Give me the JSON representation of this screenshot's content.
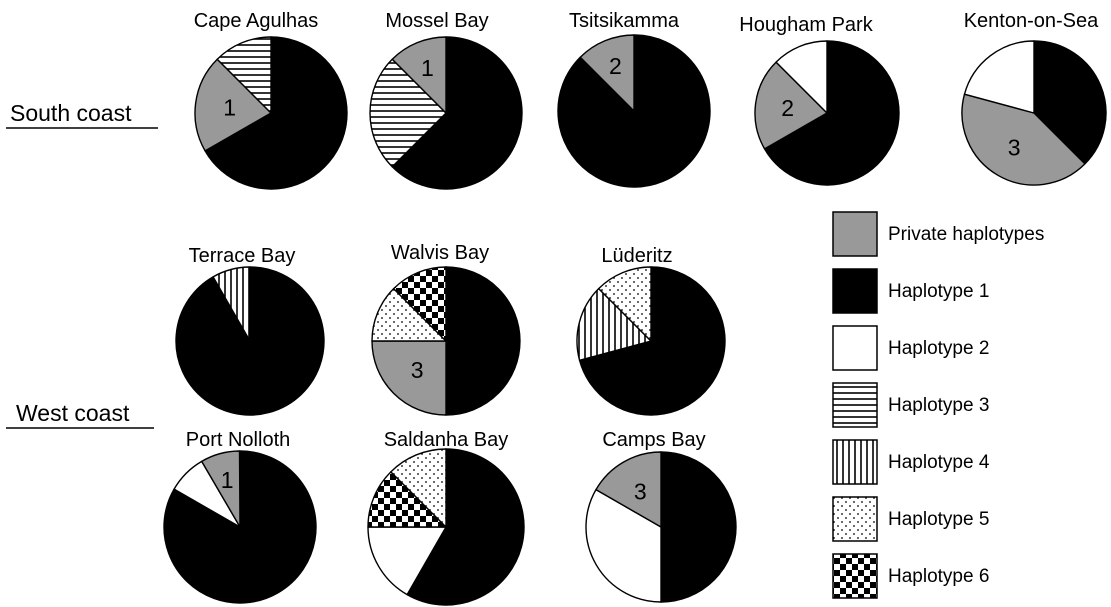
{
  "chart_data": {
    "type": "pie",
    "regions": [
      {
        "id": "south",
        "label": "South coast"
      },
      {
        "id": "west",
        "label": "West coast"
      }
    ],
    "legend": [
      {
        "key": "private",
        "label": "Private haplotypes",
        "pattern": "gray",
        "color": "#999999"
      },
      {
        "key": "h1",
        "label": "Haplotype 1",
        "pattern": "solid-black",
        "color": "#000000"
      },
      {
        "key": "h2",
        "label": "Haplotype 2",
        "pattern": "white",
        "color": "#ffffff"
      },
      {
        "key": "h3",
        "label": "Haplotype 3",
        "pattern": "horizontal-lines"
      },
      {
        "key": "h4",
        "label": "Haplotype 4",
        "pattern": "vertical-lines"
      },
      {
        "key": "h5",
        "label": "Haplotype 5",
        "pattern": "dots"
      },
      {
        "key": "h6",
        "label": "Haplotype 6",
        "pattern": "checkerboard"
      }
    ],
    "pies": [
      {
        "name": "Cape Agulhas",
        "region": "south",
        "slices": [
          {
            "key": "h1",
            "value": 0.667
          },
          {
            "key": "private",
            "value": 0.208,
            "label": "1"
          },
          {
            "key": "h3",
            "value": 0.125
          }
        ]
      },
      {
        "name": "Mossel Bay",
        "region": "south",
        "slices": [
          {
            "key": "h1",
            "value": 0.625
          },
          {
            "key": "h3",
            "value": 0.25
          },
          {
            "key": "private",
            "value": 0.125,
            "label": "1"
          }
        ]
      },
      {
        "name": "Tsitsikamma",
        "region": "south",
        "slices": [
          {
            "key": "h1",
            "value": 0.875
          },
          {
            "key": "private",
            "value": 0.125,
            "label": "2"
          }
        ]
      },
      {
        "name": "Hougham Park",
        "region": "south",
        "slices": [
          {
            "key": "h1",
            "value": 0.667
          },
          {
            "key": "private",
            "value": 0.208,
            "label": "2"
          },
          {
            "key": "h2",
            "value": 0.125
          }
        ]
      },
      {
        "name": "Kenton-on-Sea",
        "region": "south",
        "slices": [
          {
            "key": "h1",
            "value": 0.375
          },
          {
            "key": "private",
            "value": 0.417,
            "label": "3"
          },
          {
            "key": "h2",
            "value": 0.208
          }
        ]
      },
      {
        "name": "Terrace Bay",
        "region": "west",
        "slices": [
          {
            "key": "h1",
            "value": 0.917
          },
          {
            "key": "h4",
            "value": 0.083
          }
        ]
      },
      {
        "name": "Walvis Bay",
        "region": "west",
        "slices": [
          {
            "key": "h1",
            "value": 0.5
          },
          {
            "key": "private",
            "value": 0.25,
            "label": "3"
          },
          {
            "key": "h5",
            "value": 0.125
          },
          {
            "key": "h6",
            "value": 0.125
          }
        ]
      },
      {
        "name": "Lüderitz",
        "region": "west",
        "slices": [
          {
            "key": "h1",
            "value": 0.708
          },
          {
            "key": "h4",
            "value": 0.167
          },
          {
            "key": "h5",
            "value": 0.125
          }
        ]
      },
      {
        "name": "Port Nolloth",
        "region": "west",
        "slices": [
          {
            "key": "h1",
            "value": 0.833
          },
          {
            "key": "h2",
            "value": 0.083
          },
          {
            "key": "private",
            "value": 0.083,
            "label": "1"
          }
        ]
      },
      {
        "name": "Saldanha Bay",
        "region": "west",
        "slices": [
          {
            "key": "h1",
            "value": 0.583
          },
          {
            "key": "h2",
            "value": 0.167
          },
          {
            "key": "h6",
            "value": 0.125
          },
          {
            "key": "h5",
            "value": 0.125
          }
        ]
      },
      {
        "name": "Camps Bay",
        "region": "west",
        "slices": [
          {
            "key": "h1",
            "value": 0.5
          },
          {
            "key": "h2",
            "value": 0.333
          },
          {
            "key": "private",
            "value": 0.167,
            "label": "3"
          }
        ]
      }
    ]
  }
}
